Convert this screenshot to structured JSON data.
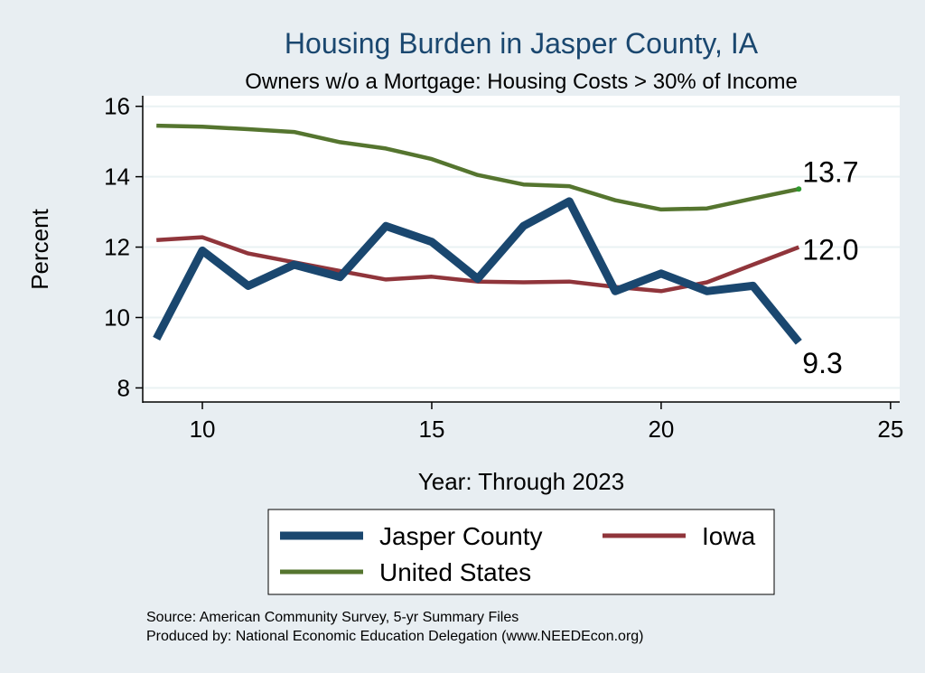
{
  "chart_data": {
    "type": "line",
    "title": "Housing Burden in Jasper County, IA",
    "subtitle": "Owners w/o a Mortgage: Housing Costs > 30% of Income",
    "xlabel": "Year: Through 2023",
    "ylabel": "Percent",
    "xlim": [
      8.7,
      25.2
    ],
    "ylim": [
      7.6,
      16.3
    ],
    "xticks": [
      10,
      15,
      20,
      25
    ],
    "yticks": [
      8,
      10,
      12,
      14,
      16
    ],
    "grid": true,
    "x": [
      9,
      10,
      11,
      12,
      13,
      14,
      15,
      16,
      17,
      18,
      19,
      20,
      21,
      22,
      23
    ],
    "series": [
      {
        "name": "Jasper County",
        "color": "#1a476f",
        "values": [
          9.4,
          11.9,
          10.9,
          11.5,
          11.15,
          12.6,
          12.15,
          11.1,
          12.6,
          13.3,
          10.75,
          11.25,
          10.75,
          10.9,
          9.3
        ],
        "end_label": "9.3"
      },
      {
        "name": "Iowa",
        "color": "#90353b",
        "values": [
          12.2,
          12.28,
          11.82,
          11.57,
          11.32,
          11.08,
          11.16,
          11.02,
          11.0,
          11.02,
          10.87,
          10.75,
          11.0,
          11.5,
          12.0
        ],
        "end_label": "12.0"
      },
      {
        "name": "United States",
        "color": "#55752f",
        "values": [
          15.45,
          15.42,
          15.35,
          15.27,
          14.98,
          14.8,
          14.5,
          14.05,
          13.78,
          13.73,
          13.33,
          13.07,
          13.1,
          13.38,
          13.65
        ],
        "end_label": "13.7"
      }
    ],
    "legend": {
      "position": "bottom",
      "entries": [
        "Jasper County",
        "Iowa",
        "United States"
      ]
    },
    "source": "Source: American Community Survey, 5-yr Summary Files",
    "producer": "Produced by: National Economic Education Delegation (www.NEEDEcon.org)"
  },
  "colors": {
    "background": "#e8eef2",
    "plot_background": "#ffffff",
    "title": "#1a476f",
    "grid": "#eaf2f3"
  }
}
